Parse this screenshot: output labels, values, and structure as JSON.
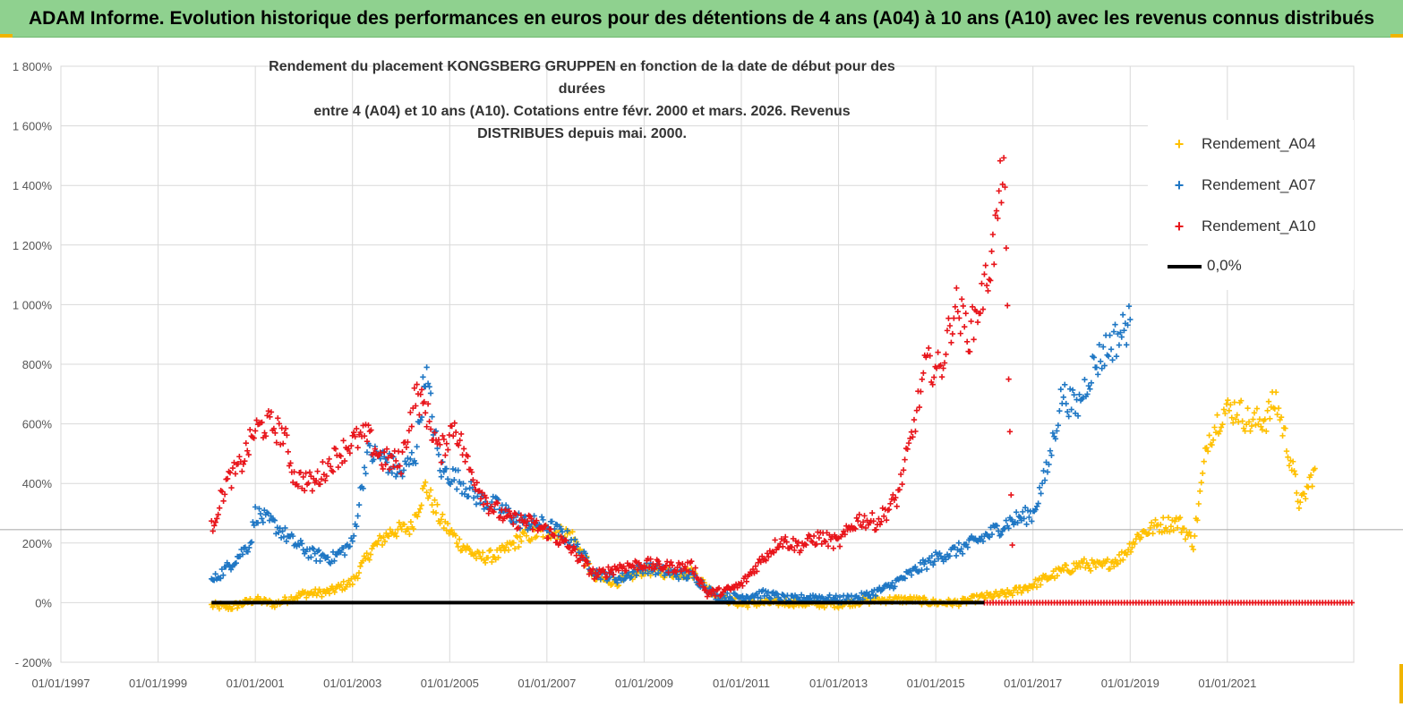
{
  "banner": {
    "text": "ADAM Informe. Evolution historique des performances en euros pour des détentions de 4 ans (A04) à 10 ans (A10) avec les revenus connus distribués"
  },
  "chart_data": {
    "type": "scatter",
    "title_lines": [
      "Rendement du placement KONGSBERG GRUPPEN en fonction de la date de début pour des durées",
      "entre 4 (A04) et 10 ans (A10).  Cotations entre févr. 2000 et mars. 2026. Revenus DISTRIBUES depuis mai. 2000."
    ],
    "xlabel": "",
    "ylabel": "",
    "y_ticks": [
      "1 800%",
      "1 600%",
      "1 400%",
      "1 200%",
      "1 000%",
      "800%",
      "600%",
      "400%",
      "200%",
      "0%",
      "- 200%"
    ],
    "y_tick_values": [
      1800,
      1600,
      1400,
      1200,
      1000,
      800,
      600,
      400,
      200,
      0,
      -200
    ],
    "ylim": [
      -200,
      1800
    ],
    "x_ticks": [
      "01/01/1997",
      "01/01/1999",
      "01/01/2001",
      "01/01/2003",
      "01/01/2005",
      "01/01/2007",
      "01/01/2009",
      "01/01/2011",
      "01/01/2013",
      "01/01/2015",
      "01/01/2017",
      "01/01/2019",
      "01/01/2021"
    ],
    "x_tick_years": [
      1997,
      1999,
      2001,
      2003,
      2005,
      2007,
      2009,
      2011,
      2013,
      2015,
      2017,
      2019,
      2021
    ],
    "xlim": [
      1997,
      2023.6
    ],
    "reference_line_value": 245,
    "legend": [
      {
        "label": "Rendement_A04",
        "marker": "+",
        "color": "#ffc000"
      },
      {
        "label": "Rendement_A07",
        "marker": "+",
        "color": "#1f77c4"
      },
      {
        "label": "Rendement_A10",
        "marker": "+",
        "color": "#e8151b"
      },
      {
        "label": "0,0%",
        "marker": "line",
        "color": "#000000"
      }
    ],
    "zero_line": {
      "name": "0,0%",
      "x_start": 2000.1,
      "x_end": 2016.0,
      "value": 0
    },
    "series": [
      {
        "name": "Rendement_A04",
        "color": "#ffc000",
        "x": [
          2000.1,
          2000.5,
          2001.0,
          2001.4,
          2002.0,
          2002.5,
          2003.0,
          2003.4,
          2003.8,
          2004.2,
          2004.5,
          2004.8,
          2005.2,
          2005.6,
          2006.0,
          2006.5,
          2007.0,
          2007.5,
          2008.0,
          2008.5,
          2009.0,
          2009.5,
          2010.0,
          2010.5,
          2011.0,
          2011.5,
          2012.0,
          2012.5,
          2013.0,
          2013.5,
          2014.0,
          2014.5,
          2015.0,
          2015.5,
          2016.0,
          2016.5,
          2017.0,
          2017.5,
          2018.0,
          2018.4,
          2018.8,
          2019.2,
          2019.6,
          2020.0,
          2020.3,
          2020.6,
          2020.9,
          2021.2,
          2021.5,
          2021.8,
          2022.0,
          2022.3,
          2022.5,
          2022.8
        ],
        "y": [
          -10,
          -15,
          10,
          -5,
          30,
          35,
          70,
          180,
          240,
          250,
          390,
          280,
          200,
          150,
          160,
          220,
          240,
          230,
          80,
          70,
          110,
          100,
          100,
          20,
          -5,
          0,
          0,
          -5,
          -5,
          5,
          10,
          10,
          0,
          0,
          20,
          30,
          60,
          100,
          130,
          120,
          150,
          230,
          260,
          270,
          200,
          550,
          640,
          650,
          600,
          620,
          680,
          480,
          320,
          450
        ]
      },
      {
        "name": "Rendement_A07",
        "color": "#1f77c4",
        "x": [
          2000.1,
          2000.5,
          2000.9,
          2001.0,
          2001.4,
          2001.8,
          2002.2,
          2002.6,
          2003.0,
          2003.3,
          2003.6,
          2004.0,
          2004.3,
          2004.5,
          2004.8,
          2005.2,
          2005.6,
          2006.0,
          2006.5,
          2007.0,
          2007.5,
          2008.0,
          2008.5,
          2009.0,
          2009.5,
          2010.0,
          2010.5,
          2011.0,
          2011.5,
          2012.0,
          2012.5,
          2013.0,
          2013.5,
          2014.0,
          2014.5,
          2015.0,
          2015.5,
          2016.0,
          2016.5,
          2017.0,
          2017.3,
          2017.6,
          2017.9,
          2018.2,
          2018.5,
          2018.8,
          2019.0
        ],
        "y": [
          70,
          130,
          200,
          300,
          260,
          200,
          160,
          150,
          200,
          500,
          490,
          430,
          500,
          780,
          450,
          410,
          350,
          320,
          270,
          260,
          210,
          100,
          80,
          120,
          100,
          90,
          20,
          20,
          30,
          10,
          20,
          10,
          20,
          50,
          100,
          150,
          180,
          220,
          270,
          300,
          450,
          700,
          650,
          780,
          850,
          900,
          950
        ]
      },
      {
        "name": "Rendement_A10",
        "color": "#e8151b",
        "x": [
          2000.1,
          2000.4,
          2000.7,
          2001.0,
          2001.3,
          2001.6,
          2001.8,
          2002.2,
          2002.6,
          2003.0,
          2003.3,
          2003.6,
          2004.0,
          2004.3,
          2004.5,
          2004.8,
          2005.1,
          2005.4,
          2005.8,
          2006.2,
          2006.6,
          2007.0,
          2007.5,
          2008.0,
          2008.5,
          2009.0,
          2009.5,
          2010.0,
          2010.3,
          2010.7,
          2011.0,
          2011.4,
          2011.8,
          2012.2,
          2012.6,
          2013.0,
          2013.4,
          2013.8,
          2014.2,
          2014.5,
          2014.8,
          2015.1,
          2015.4,
          2015.7,
          2016.0,
          2016.2,
          2016.4,
          2016.6
        ],
        "y": [
          250,
          400,
          460,
          580,
          600,
          560,
          420,
          400,
          480,
          540,
          560,
          480,
          470,
          700,
          650,
          500,
          600,
          450,
          330,
          280,
          270,
          240,
          180,
          90,
          120,
          130,
          120,
          120,
          30,
          40,
          60,
          140,
          210,
          190,
          220,
          200,
          280,
          270,
          350,
          550,
          800,
          780,
          1000,
          900,
          1050,
          1200,
          1500,
          0
        ]
      },
      {
        "name": "Rendement_A10_tail",
        "color": "#e8151b",
        "x_start": 2016.0,
        "x_end": 2023.6,
        "value": 0
      }
    ]
  }
}
